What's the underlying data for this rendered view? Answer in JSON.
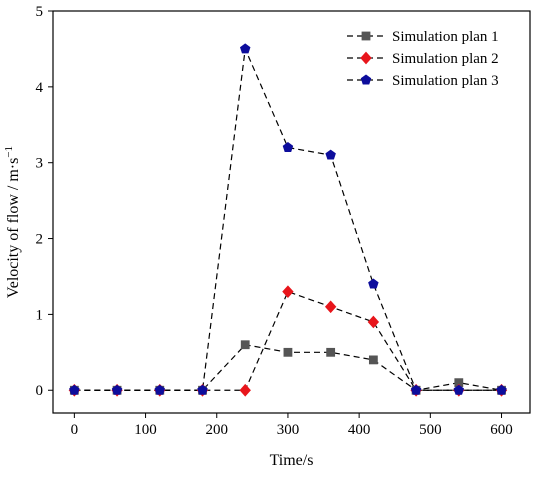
{
  "chart_data": {
    "type": "line",
    "title": "",
    "xlabel": "Time/s",
    "ylabel": "Velocity of  flow / m·s",
    "ylabel_superscript": "−1",
    "xlim": [
      -30,
      640
    ],
    "ylim": [
      -0.3,
      5
    ],
    "x_ticks": [
      0,
      100,
      200,
      300,
      400,
      500,
      600
    ],
    "y_ticks": [
      0,
      1,
      2,
      3,
      4,
      5
    ],
    "x_tick_labels": [
      "0",
      "100",
      "200",
      "300",
      "400",
      "500",
      "600"
    ],
    "y_tick_labels": [
      "0",
      "1",
      "2",
      "3",
      "4",
      "5"
    ],
    "grid": false,
    "legend_position": "top-right",
    "x": [
      0,
      60,
      120,
      180,
      240,
      300,
      360,
      420,
      480,
      540,
      600
    ],
    "series": [
      {
        "name": "Simulation plan 1",
        "marker": "square",
        "color": "#555555",
        "line_style": "dashed",
        "values": [
          0,
          0,
          0,
          0,
          0.6,
          0.5,
          0.5,
          0.4,
          0,
          0.1,
          0
        ]
      },
      {
        "name": "Simulation plan 2",
        "marker": "diamond",
        "color": "#e8151b",
        "line_style": "dashed",
        "values": [
          0,
          0,
          0,
          0,
          0,
          1.3,
          1.1,
          0.9,
          0,
          0,
          0
        ]
      },
      {
        "name": "Simulation plan 3",
        "marker": "pentagon",
        "color": "#0d0d9c",
        "line_style": "dashed",
        "values": [
          0,
          0,
          0,
          0,
          4.5,
          3.2,
          3.1,
          1.4,
          0,
          0,
          0
        ]
      }
    ]
  }
}
